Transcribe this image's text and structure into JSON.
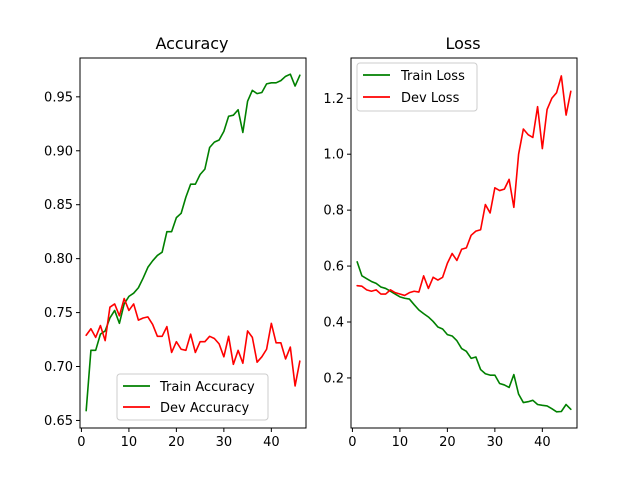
{
  "chart_data": [
    {
      "type": "line",
      "title": "Accuracy",
      "xlabel": "",
      "ylabel": "",
      "xlim": [
        -0.3,
        47.3
      ],
      "ylim": [
        0.643,
        0.986
      ],
      "xticks": [
        0,
        10,
        20,
        30,
        40
      ],
      "xtick_labels": [
        "0",
        "10",
        "20",
        "30",
        "40"
      ],
      "yticks": [
        0.65,
        0.7,
        0.75,
        0.8,
        0.85,
        0.9,
        0.95
      ],
      "ytick_labels": [
        "0.65",
        "0.70",
        "0.75",
        "0.80",
        "0.85",
        "0.90",
        "0.95"
      ],
      "grid": false,
      "legend_position": "lower-center",
      "x": [
        1,
        2,
        3,
        4,
        5,
        6,
        7,
        8,
        9,
        10,
        11,
        12,
        13,
        14,
        15,
        16,
        17,
        18,
        19,
        20,
        21,
        22,
        23,
        24,
        25,
        26,
        27,
        28,
        29,
        30,
        31,
        32,
        33,
        34,
        35,
        36,
        37,
        38,
        39,
        40,
        41,
        42,
        43,
        44,
        45,
        46
      ],
      "series": [
        {
          "name": "Train Accuracy",
          "color": "#008000",
          "values": [
            0.659,
            0.715,
            0.715,
            0.73,
            0.733,
            0.745,
            0.752,
            0.74,
            0.758,
            0.765,
            0.768,
            0.773,
            0.782,
            0.792,
            0.798,
            0.803,
            0.806,
            0.825,
            0.825,
            0.838,
            0.842,
            0.857,
            0.869,
            0.869,
            0.878,
            0.883,
            0.903,
            0.908,
            0.91,
            0.918,
            0.932,
            0.933,
            0.938,
            0.917,
            0.946,
            0.956,
            0.953,
            0.954,
            0.962,
            0.963,
            0.963,
            0.965,
            0.969,
            0.971,
            0.96,
            0.97
          ]
        },
        {
          "name": "Dev Accuracy",
          "color": "#ff0000",
          "values": [
            0.729,
            0.735,
            0.727,
            0.738,
            0.724,
            0.755,
            0.758,
            0.747,
            0.763,
            0.752,
            0.758,
            0.743,
            0.745,
            0.746,
            0.739,
            0.728,
            0.728,
            0.737,
            0.713,
            0.723,
            0.716,
            0.715,
            0.73,
            0.713,
            0.723,
            0.723,
            0.728,
            0.726,
            0.721,
            0.709,
            0.728,
            0.702,
            0.715,
            0.703,
            0.733,
            0.727,
            0.704,
            0.709,
            0.716,
            0.74,
            0.722,
            0.722,
            0.707,
            0.718,
            0.682,
            0.705
          ]
        }
      ]
    },
    {
      "type": "line",
      "title": "Loss",
      "xlabel": "",
      "ylabel": "",
      "xlim": [
        -0.3,
        47.3
      ],
      "ylim": [
        0.021,
        1.344
      ],
      "xticks": [
        0,
        10,
        20,
        30,
        40
      ],
      "xtick_labels": [
        "0",
        "10",
        "20",
        "30",
        "40"
      ],
      "yticks": [
        0.2,
        0.4,
        0.6,
        0.8,
        1.0,
        1.2
      ],
      "ytick_labels": [
        "0.2",
        "0.4",
        "0.6",
        "0.8",
        "1.0",
        "1.2"
      ],
      "grid": false,
      "legend_position": "upper-left",
      "x": [
        1,
        2,
        3,
        4,
        5,
        6,
        7,
        8,
        9,
        10,
        11,
        12,
        13,
        14,
        15,
        16,
        17,
        18,
        19,
        20,
        21,
        22,
        23,
        24,
        25,
        26,
        27,
        28,
        29,
        30,
        31,
        32,
        33,
        34,
        35,
        36,
        37,
        38,
        39,
        40,
        41,
        42,
        43,
        44,
        45,
        46
      ],
      "series": [
        {
          "name": "Train Loss",
          "color": "#008000",
          "values": [
            0.615,
            0.565,
            0.555,
            0.545,
            0.538,
            0.525,
            0.52,
            0.51,
            0.5,
            0.49,
            0.485,
            0.482,
            0.462,
            0.443,
            0.43,
            0.418,
            0.402,
            0.382,
            0.375,
            0.355,
            0.35,
            0.333,
            0.305,
            0.295,
            0.27,
            0.275,
            0.23,
            0.215,
            0.21,
            0.21,
            0.18,
            0.175,
            0.166,
            0.212,
            0.142,
            0.112,
            0.115,
            0.12,
            0.105,
            0.102,
            0.1,
            0.09,
            0.079,
            0.08,
            0.105,
            0.088
          ]
        },
        {
          "name": "Dev Loss",
          "color": "#ff0000",
          "values": [
            0.53,
            0.528,
            0.515,
            0.51,
            0.515,
            0.5,
            0.5,
            0.515,
            0.505,
            0.5,
            0.495,
            0.505,
            0.51,
            0.507,
            0.565,
            0.52,
            0.56,
            0.55,
            0.56,
            0.61,
            0.645,
            0.62,
            0.66,
            0.665,
            0.71,
            0.725,
            0.73,
            0.82,
            0.79,
            0.88,
            0.87,
            0.875,
            0.91,
            0.81,
            1.0,
            1.09,
            1.07,
            1.06,
            1.17,
            1.02,
            1.16,
            1.2,
            1.22,
            1.28,
            1.14,
            1.225
          ]
        }
      ]
    }
  ]
}
